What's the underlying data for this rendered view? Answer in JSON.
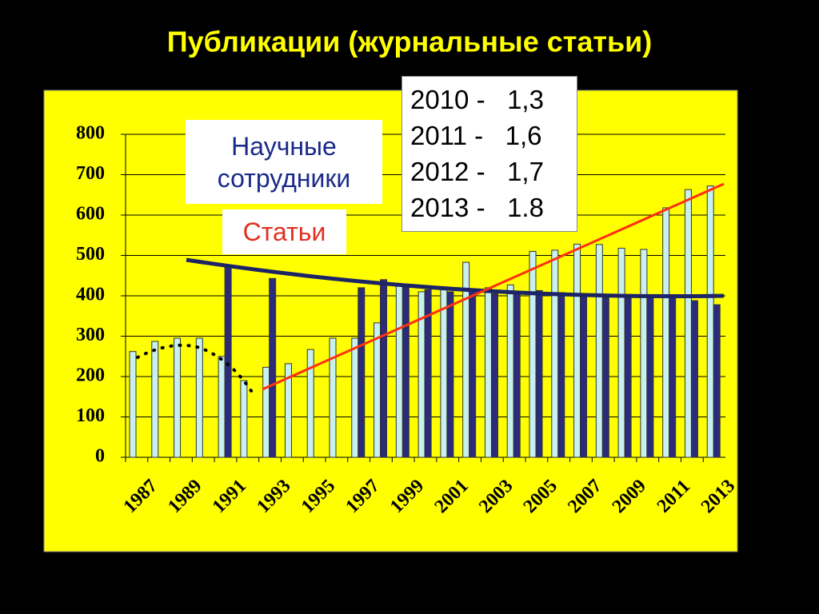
{
  "chart_data": {
    "type": "bar",
    "title": "Публикации (журнальные статьи)",
    "categories": [
      "1987",
      null,
      "1989",
      null,
      "1991",
      null,
      "1993",
      null,
      "1995",
      null,
      "1997",
      null,
      "1999",
      null,
      "2001",
      null,
      "2003",
      null,
      "2005",
      null,
      "2007",
      null,
      "2009",
      null,
      "2011",
      null,
      "2013"
    ],
    "series": [
      {
        "name": "Статьи",
        "color": "#c8f0ee",
        "values": [
          262,
          287,
          295,
          295,
          250,
          190,
          223,
          232,
          267,
          295,
          295,
          333,
          427,
          410,
          418,
          483,
          420,
          427,
          510,
          513,
          528,
          527,
          518,
          515,
          618,
          663,
          672
        ]
      },
      {
        "name": "Научные сотрудники",
        "color": "#2b2b7a",
        "values": [
          null,
          null,
          null,
          null,
          470,
          null,
          443,
          null,
          null,
          null,
          420,
          440,
          423,
          415,
          410,
          413,
          405,
          408,
          413,
          408,
          405,
          395,
          395,
          400,
          395,
          388,
          378
        ]
      }
    ],
    "ylim": [
      0,
      800
    ],
    "yticks": [
      0,
      100,
      200,
      300,
      400,
      500,
      600,
      700,
      800
    ],
    "grid": true,
    "annotations": [
      "2010 -   1,3",
      "2011 -   1,6",
      "2012 -   1,7",
      "2013 -   1.8"
    ]
  }
}
